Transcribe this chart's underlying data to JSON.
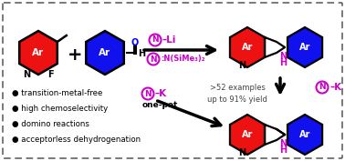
{
  "background_color": "#ffffff",
  "red_color": "#ee1111",
  "blue_color": "#1111ee",
  "magenta_color": "#cc00cc",
  "black_color": "#000000",
  "bullet_points": [
    "transition-metal-free",
    "high chemoselectivity",
    "domino reactions",
    "acceptorless dehydrogenation"
  ],
  "yield_text": ">52 examples\nup to 91% yield"
}
